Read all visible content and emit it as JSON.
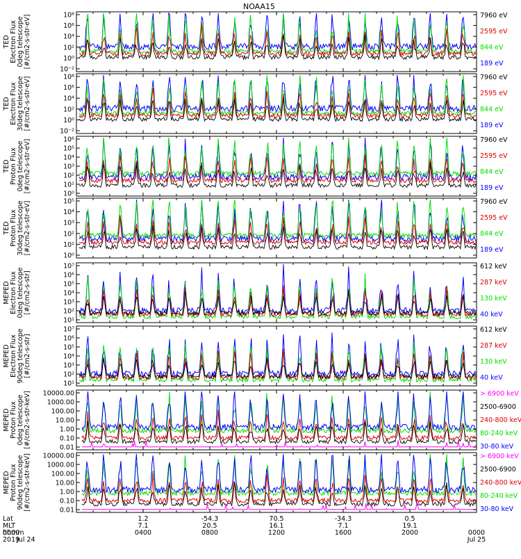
{
  "title": "NOAA15",
  "colors": {
    "black": "#000000",
    "red": "#dd0000",
    "green": "#00dd00",
    "blue": "#0000ff",
    "magenta": "#ff00ff"
  },
  "panels": [
    {
      "ylabel": [
        "TED",
        "Electron Flux",
        "0deg telescope",
        "[#/cm2-s-str-eV]"
      ],
      "yticks": [
        "10⁸",
        "10⁶",
        "10⁴",
        "10²",
        "10⁰",
        "10⁻²"
      ],
      "legend": [
        {
          "text": "7960 eV",
          "color": "black"
        },
        {
          "text": "2595 eV",
          "color": "red"
        },
        {
          "text": "844 eV",
          "color": "green"
        },
        {
          "text": "189 eV",
          "color": "blue"
        }
      ]
    },
    {
      "ylabel": [
        "TED",
        "Electron Flux",
        "30deg telescope",
        "[#/cm2-s-str-eV]"
      ],
      "yticks": [
        "10⁸",
        "10⁶",
        "10⁴",
        "10²",
        "10⁰",
        "10⁻²"
      ],
      "legend": [
        {
          "text": "7960 eV",
          "color": "black"
        },
        {
          "text": "2595 eV",
          "color": "red"
        },
        {
          "text": "844 eV",
          "color": "green"
        },
        {
          "text": "189 eV",
          "color": "blue"
        }
      ]
    },
    {
      "ylabel": [
        "TED",
        "Proton Flux",
        "0deg telescope",
        "[#/cm2-s-str-eV]"
      ],
      "yticks": [
        "10⁶",
        "10⁵",
        "10⁴",
        "10³",
        "10²",
        "10¹",
        "10⁰"
      ],
      "legend": [
        {
          "text": "7960 eV",
          "color": "black"
        },
        {
          "text": "2595 eV",
          "color": "red"
        },
        {
          "text": "844 eV",
          "color": "green"
        },
        {
          "text": "189 eV",
          "color": "blue"
        }
      ]
    },
    {
      "ylabel": [
        "TED",
        "Proton Flux",
        "30deg telescope",
        "[#/cm2-s-str-eV]"
      ],
      "yticks": [
        "10⁵",
        "10⁴",
        "10³",
        "10²",
        "10¹",
        "10⁰"
      ],
      "legend": [
        {
          "text": "7960 eV",
          "color": "black"
        },
        {
          "text": "2595 eV",
          "color": "red"
        },
        {
          "text": "844 eV",
          "color": "green"
        },
        {
          "text": "189 eV",
          "color": "blue"
        }
      ]
    },
    {
      "ylabel": [
        "MEPED",
        "Electron Flux",
        "0deg telescope",
        "[#/cm2-s-str]"
      ],
      "yticks": [
        "10⁷",
        "10⁶",
        "10⁵",
        "10⁴",
        "10³",
        "10²",
        "10¹"
      ],
      "legend": [
        {
          "text": "612 keV",
          "color": "black"
        },
        {
          "text": "287 keV",
          "color": "red"
        },
        {
          "text": "130 keV",
          "color": "green"
        },
        {
          "text": "40 keV",
          "color": "blue"
        }
      ]
    },
    {
      "ylabel": [
        "MEPED",
        "Electron Flux",
        "90deg telescope",
        "[#/cm2-s-str]"
      ],
      "yticks": [
        "10⁷",
        "10⁶",
        "10⁵",
        "10⁴",
        "10³",
        "10²",
        "10¹"
      ],
      "legend": [
        {
          "text": "612 keV",
          "color": "black"
        },
        {
          "text": "287 keV",
          "color": "red"
        },
        {
          "text": "130 keV",
          "color": "green"
        },
        {
          "text": "40 keV",
          "color": "blue"
        }
      ]
    },
    {
      "ylabel": [
        "MEPED",
        "Proton Flux",
        "0deg telescope",
        "[#/cm2-s-str-keV]"
      ],
      "yticks": [
        "10000.00",
        "1000.00",
        "100.00",
        "10.00",
        "1.00",
        "0.10",
        "0.01"
      ],
      "legend": [
        {
          "text": "> 6900 keV",
          "color": "magenta"
        },
        {
          "text": "2500-6900",
          "color": "black"
        },
        {
          "text": "240-800 keV",
          "color": "red"
        },
        {
          "text": "80-240 keV",
          "color": "green"
        },
        {
          "text": "30-80 keV",
          "color": "blue"
        }
      ]
    },
    {
      "ylabel": [
        "MEPED",
        "Proton Flux",
        "90deg telescope",
        "[#/cm2-s-str-keV]"
      ],
      "yticks": [
        "10000.00",
        "1000.00",
        "100.00",
        "10.00",
        "1.00",
        "0.10",
        "0.01"
      ],
      "legend": [
        {
          "text": "> 6900 keV",
          "color": "magenta"
        },
        {
          "text": "2500-6900",
          "color": "black"
        },
        {
          "text": "240-800 keV",
          "color": "red"
        },
        {
          "text": "80-240 keV",
          "color": "green"
        },
        {
          "text": "30-80 keV",
          "color": "blue"
        }
      ]
    }
  ],
  "xaxis": {
    "row_labels": [
      "Lat",
      "MLT",
      "hhmm",
      "2019"
    ],
    "first_column": [
      "",
      "",
      "0000",
      "Jul 24"
    ],
    "columns": [
      [
        "1.2",
        "7.1",
        "0400",
        ""
      ],
      [
        "-54.3",
        "20.5",
        "0800",
        ""
      ],
      [
        "70.5",
        "16.1",
        "1200",
        ""
      ],
      [
        "-34.3",
        "7.1",
        "1600",
        ""
      ],
      [
        "0.5",
        "19.1",
        "2000",
        ""
      ]
    ],
    "last_column": [
      "",
      "",
      "0000",
      "Jul 25"
    ]
  },
  "chart_data": {
    "type": "line",
    "title": "NOAA15",
    "x_range": [
      "2019 Jul 24 0000",
      "2019 Jul 25 0000"
    ],
    "x_ticks": [
      "0000",
      "0400",
      "0800",
      "1200",
      "1600",
      "2000",
      "0000"
    ],
    "x_secondary": {
      "Lat": [
        1.2,
        -54.3,
        70.5,
        -34.3,
        0.5
      ],
      "MLT": [
        7.1,
        20.5,
        16.1,
        7.1,
        19.1
      ]
    },
    "series_note": "time series of particle flux per energy channel; individual samples are not legible in the image"
  }
}
